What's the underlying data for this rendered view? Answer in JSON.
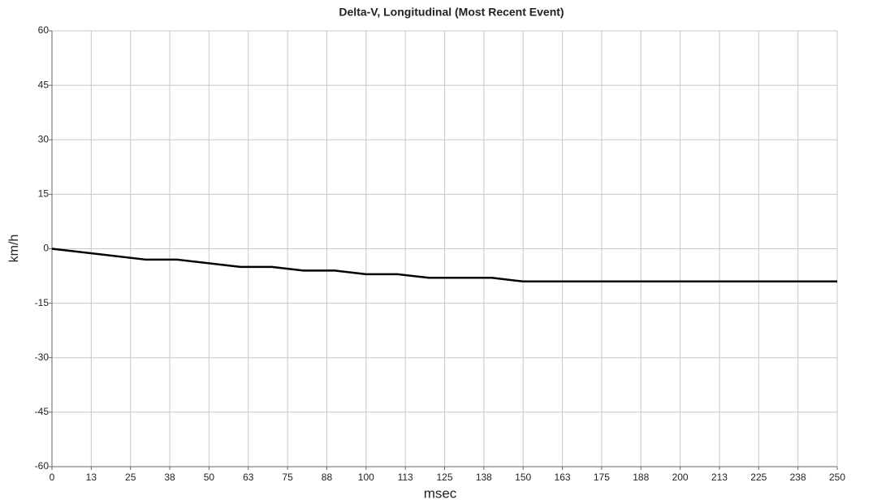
{
  "chart_data": {
    "type": "line",
    "title": "Delta-V, Longitudinal (Most Recent Event)",
    "x_label": "msec",
    "y_label": "km/h",
    "x": [
      0,
      30,
      40,
      60,
      70,
      80,
      90,
      100,
      110,
      120,
      140,
      150,
      250
    ],
    "values": [
      0,
      -3,
      -3,
      -5,
      -5,
      -6,
      -6,
      -7,
      -7,
      -8,
      -8,
      -9,
      -9
    ],
    "color": "#000000",
    "xlim": [
      0,
      250
    ],
    "xticks": [
      0,
      {
        "value": 12.5,
        "label": "13"
      },
      25,
      {
        "value": 37.5,
        "label": "38"
      },
      50,
      {
        "value": 62.5,
        "label": "63"
      },
      75,
      {
        "value": 87.5,
        "label": "88"
      },
      100,
      {
        "value": 112.5,
        "label": "113"
      },
      125,
      {
        "value": 137.5,
        "label": "138"
      },
      150,
      {
        "value": 162.5,
        "label": "163"
      },
      175,
      {
        "value": 187.5,
        "label": "188"
      },
      200,
      {
        "value": 212.5,
        "label": "213"
      },
      225,
      {
        "value": 237.5,
        "label": "238"
      },
      250
    ],
    "ylim": [
      -60,
      60
    ],
    "yticks": [
      -60,
      -45,
      -30,
      -15,
      0,
      15,
      30,
      45,
      60
    ],
    "grid": true
  }
}
